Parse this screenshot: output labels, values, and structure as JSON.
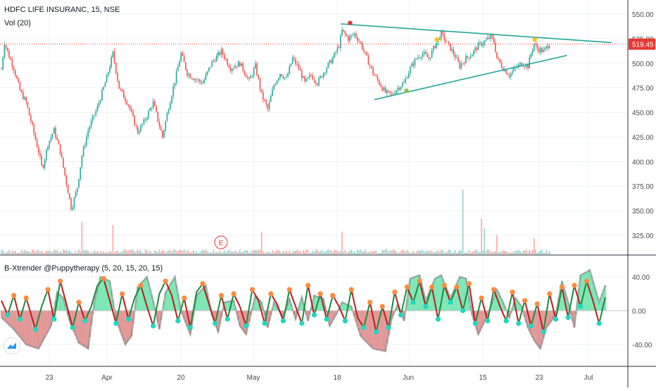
{
  "legend": {
    "symbol": "HDFC LIFE INSURANC, 15, NSE",
    "volume": "Vol (20)",
    "oscillator": "B-Xtrender @Puppytherapy (5, 20, 15, 20, 15)"
  },
  "earnings_marker": "E",
  "colors": {
    "up": "#26a69a",
    "down": "#ef5350",
    "trendline": "#26a69a",
    "price_line": "#e53935",
    "osc_pos": "#1fd580",
    "osc_neg": "#c62828",
    "osc_dot_up": "#ff8a3d",
    "osc_dot_down": "#1ed8c0",
    "dot_red": "#e53935",
    "dot_yellow": "#ffc107",
    "dot_green": "#8bc34a"
  },
  "chart_data": [
    {
      "type": "candlestick",
      "title": "HDFC LIFE INSURANC, 15, NSE",
      "x_ticks": [
        "23",
        "Apr",
        "20",
        "May",
        "18",
        "Jun",
        "15",
        "23",
        "Jul"
      ],
      "y_ticks": [
        "550.00",
        "525.00",
        "500.00",
        "475.00",
        "450.00",
        "425.00",
        "400.00",
        "375.00",
        "350.00",
        "325.00"
      ],
      "ylim": [
        320,
        558
      ],
      "last_price": 519.45,
      "last_price_label": "519.45",
      "close_path": [
        [
          0,
          494
        ],
        [
          0.5,
          521
        ],
        [
          1.2,
          508
        ],
        [
          2,
          495
        ],
        [
          3,
          472
        ],
        [
          4,
          460
        ],
        [
          5,
          435
        ],
        [
          6,
          410
        ],
        [
          6.6,
          392
        ],
        [
          7.5,
          418
        ],
        [
          8.5,
          432
        ],
        [
          9.5,
          410
        ],
        [
          10.5,
          378
        ],
        [
          11.3,
          352
        ],
        [
          12.2,
          372
        ],
        [
          13,
          406
        ],
        [
          14,
          432
        ],
        [
          15.5,
          455
        ],
        [
          17,
          485
        ],
        [
          18,
          510
        ],
        [
          19,
          475
        ],
        [
          20.5,
          458
        ],
        [
          22,
          430
        ],
        [
          23,
          440
        ],
        [
          24.5,
          460
        ],
        [
          26,
          425
        ],
        [
          27,
          456
        ],
        [
          28,
          482
        ],
        [
          29,
          510
        ],
        [
          30,
          490
        ],
        [
          31,
          485
        ],
        [
          32.5,
          480
        ],
        [
          34,
          501
        ],
        [
          35.5,
          512
        ],
        [
          37,
          495
        ],
        [
          38.5,
          500
        ],
        [
          40,
          482
        ],
        [
          41,
          497
        ],
        [
          42,
          468
        ],
        [
          43,
          453
        ],
        [
          44,
          478
        ],
        [
          45,
          490
        ],
        [
          46,
          484
        ],
        [
          47,
          505
        ],
        [
          48,
          495
        ],
        [
          49,
          480
        ],
        [
          50,
          488
        ],
        [
          51,
          480
        ],
        [
          52.5,
          496
        ],
        [
          53.5,
          505
        ],
        [
          54.5,
          518
        ],
        [
          55,
          533
        ],
        [
          56,
          525
        ],
        [
          57,
          530
        ],
        [
          58,
          520
        ],
        [
          59,
          505
        ],
        [
          60,
          490
        ],
        [
          61,
          480
        ],
        [
          62,
          470
        ],
        [
          63,
          468
        ],
        [
          64,
          475
        ],
        [
          65,
          480
        ],
        [
          66,
          495
        ],
        [
          67,
          505
        ],
        [
          68,
          510
        ],
        [
          69,
          505
        ],
        [
          70,
          518
        ],
        [
          71,
          530
        ],
        [
          72,
          520
        ],
        [
          73,
          510
        ],
        [
          74,
          497
        ],
        [
          75,
          505
        ],
        [
          76,
          510
        ],
        [
          77,
          518
        ],
        [
          78,
          522
        ],
        [
          79,
          527
        ],
        [
          79.5,
          522
        ],
        [
          80,
          505
        ],
        [
          81,
          495
        ],
        [
          82,
          488
        ],
        [
          83,
          495
        ],
        [
          84,
          500
        ],
        [
          85,
          497
        ],
        [
          85.5,
          510
        ],
        [
          86,
          520
        ],
        [
          86.5,
          515
        ],
        [
          87.5,
          512
        ],
        [
          88.5,
          520
        ]
      ],
      "trendlines": [
        {
          "name": "upper",
          "points": [
            [
              54.8,
              540
            ],
            [
              98.5,
              521
            ]
          ]
        },
        {
          "name": "lower",
          "points": [
            [
              60.2,
              463
            ],
            [
              91.3,
              508
            ]
          ]
        }
      ],
      "markers": [
        {
          "name": "red-dot",
          "x": 56.3,
          "y": 541
        },
        {
          "name": "yellow-dot-1",
          "x": 70.3,
          "y": 524
        },
        {
          "name": "green-dot",
          "x": 65.4,
          "y": 472
        },
        {
          "name": "yellow-dot-2",
          "x": 86.1,
          "y": 524
        }
      ]
    },
    {
      "type": "bar",
      "title": "Vol (20)",
      "note": "volume bars, relative scale",
      "spikes": [
        [
          13,
          0.5
        ],
        [
          18,
          0.45
        ],
        [
          42,
          0.35
        ],
        [
          55,
          0.35
        ],
        [
          74.5,
          1.0
        ],
        [
          77.5,
          0.55
        ],
        [
          78,
          0.4
        ],
        [
          80,
          0.3
        ],
        [
          86,
          0.25
        ]
      ],
      "baseline": 0.06
    },
    {
      "type": "area",
      "title": "B-Xtrender @Puppytherapy (5, 20, 15, 20, 15)",
      "y_ticks": [
        "40.00",
        "0.00",
        "-40.00"
      ],
      "ylim": [
        -60,
        60
      ],
      "long_term": [
        [
          0,
          -8
        ],
        [
          2,
          -22
        ],
        [
          4,
          -40
        ],
        [
          6,
          -45
        ],
        [
          8,
          -18
        ],
        [
          9,
          22
        ],
        [
          10,
          15
        ],
        [
          11,
          -12
        ],
        [
          12.5,
          -38
        ],
        [
          14,
          -45
        ],
        [
          15,
          10
        ],
        [
          16,
          40
        ],
        [
          17.5,
          35
        ],
        [
          18.5,
          -10
        ],
        [
          20,
          -40
        ],
        [
          21,
          -30
        ],
        [
          22,
          28
        ],
        [
          23.5,
          40
        ],
        [
          24.5,
          12
        ],
        [
          25.5,
          -22
        ],
        [
          26.5,
          22
        ],
        [
          28,
          40
        ],
        [
          29,
          0
        ],
        [
          30.5,
          -28
        ],
        [
          31.5,
          18
        ],
        [
          33,
          30
        ],
        [
          34,
          -5
        ],
        [
          35,
          -25
        ],
        [
          36,
          10
        ],
        [
          37.5,
          12
        ],
        [
          38.5,
          -18
        ],
        [
          39.5,
          -28
        ],
        [
          41,
          18
        ],
        [
          42,
          10
        ],
        [
          43,
          -20
        ],
        [
          44,
          10
        ],
        [
          45.5,
          -8
        ],
        [
          46.5,
          14
        ],
        [
          47.5,
          -10
        ],
        [
          48.5,
          16
        ],
        [
          49.5,
          -12
        ],
        [
          50.5,
          18
        ],
        [
          52,
          14
        ],
        [
          53,
          -18
        ],
        [
          54,
          -5
        ],
        [
          55,
          10
        ],
        [
          56.5,
          5
        ],
        [
          58,
          -30
        ],
        [
          60,
          -45
        ],
        [
          62,
          -48
        ],
        [
          63,
          -10
        ],
        [
          64,
          8
        ],
        [
          65,
          -12
        ],
        [
          66,
          38
        ],
        [
          67.5,
          42
        ],
        [
          68.5,
          12
        ],
        [
          70,
          38
        ],
        [
          71,
          42
        ],
        [
          72.5,
          15
        ],
        [
          74,
          40
        ],
        [
          75,
          38
        ],
        [
          76,
          -5
        ],
        [
          77,
          -28
        ],
        [
          78.5,
          -5
        ],
        [
          80,
          25
        ],
        [
          81,
          10
        ],
        [
          82,
          -8
        ],
        [
          83,
          15
        ],
        [
          84,
          5
        ],
        [
          85,
          -20
        ],
        [
          86,
          -35
        ],
        [
          87,
          -45
        ],
        [
          88,
          -20
        ],
        [
          89.5,
          -5
        ],
        [
          90.5,
          35
        ],
        [
          91.5,
          10
        ],
        [
          92.5,
          -20
        ],
        [
          93.5,
          42
        ],
        [
          95,
          48
        ],
        [
          96.5,
          10
        ],
        [
          97.5,
          30
        ]
      ],
      "short_term": [
        [
          0,
          12
        ],
        [
          1,
          -5
        ],
        [
          2,
          18
        ],
        [
          3,
          -10
        ],
        [
          4,
          15
        ],
        [
          5.5,
          -22
        ],
        [
          6.5,
          5
        ],
        [
          7.5,
          25
        ],
        [
          8.5,
          -10
        ],
        [
          9.5,
          35
        ],
        [
          10.5,
          8
        ],
        [
          11.5,
          -20
        ],
        [
          12.5,
          10
        ],
        [
          13.5,
          -12
        ],
        [
          14.5,
          5
        ],
        [
          15.5,
          30
        ],
        [
          16.5,
          38
        ],
        [
          17.5,
          12
        ],
        [
          18.5,
          -15
        ],
        [
          19.5,
          20
        ],
        [
          20.5,
          -10
        ],
        [
          21.5,
          15
        ],
        [
          22.5,
          30
        ],
        [
          23.5,
          5
        ],
        [
          24.5,
          -18
        ],
        [
          25.5,
          20
        ],
        [
          26.5,
          35
        ],
        [
          27.5,
          18
        ],
        [
          28.5,
          -12
        ],
        [
          29.5,
          15
        ],
        [
          30.5,
          -20
        ],
        [
          31.5,
          22
        ],
        [
          32.5,
          32
        ],
        [
          33.5,
          8
        ],
        [
          34.5,
          -15
        ],
        [
          35.5,
          18
        ],
        [
          36.5,
          -10
        ],
        [
          37.5,
          20
        ],
        [
          38.5,
          5
        ],
        [
          39.5,
          -18
        ],
        [
          40.5,
          25
        ],
        [
          41.5,
          12
        ],
        [
          42.5,
          -15
        ],
        [
          43.5,
          20
        ],
        [
          44.5,
          8
        ],
        [
          45.5,
          -12
        ],
        [
          46.5,
          25
        ],
        [
          47.5,
          5
        ],
        [
          48.5,
          -15
        ],
        [
          49.5,
          30
        ],
        [
          50.5,
          -5
        ],
        [
          51.5,
          20
        ],
        [
          52.5,
          -10
        ],
        [
          53.5,
          18
        ],
        [
          54.5,
          5
        ],
        [
          55.5,
          -12
        ],
        [
          56.5,
          25
        ],
        [
          57.5,
          -8
        ],
        [
          58.5,
          -20
        ],
        [
          59.5,
          10
        ],
        [
          60.5,
          -25
        ],
        [
          61.5,
          5
        ],
        [
          62.5,
          -20
        ],
        [
          63.5,
          22
        ],
        [
          64.5,
          -5
        ],
        [
          65.5,
          28
        ],
        [
          66.5,
          10
        ],
        [
          67.5,
          35
        ],
        [
          68.5,
          5
        ],
        [
          69.5,
          28
        ],
        [
          70.5,
          -10
        ],
        [
          71.5,
          30
        ],
        [
          72.5,
          10
        ],
        [
          73.5,
          28
        ],
        [
          74.5,
          0
        ],
        [
          75.5,
          32
        ],
        [
          76.5,
          -15
        ],
        [
          77.5,
          15
        ],
        [
          78.5,
          -12
        ],
        [
          79.5,
          25
        ],
        [
          80.5,
          5
        ],
        [
          81.5,
          -12
        ],
        [
          82.5,
          22
        ],
        [
          83.5,
          -15
        ],
        [
          84.5,
          12
        ],
        [
          85.5,
          -18
        ],
        [
          86.5,
          8
        ],
        [
          87.5,
          -25
        ],
        [
          88.5,
          20
        ],
        [
          89.5,
          -10
        ],
        [
          90.5,
          28
        ],
        [
          91.5,
          -8
        ],
        [
          92.5,
          30
        ],
        [
          93.5,
          5
        ],
        [
          94.5,
          35
        ],
        [
          95.5,
          12
        ],
        [
          96.5,
          -15
        ],
        [
          97.5,
          16
        ]
      ]
    }
  ]
}
